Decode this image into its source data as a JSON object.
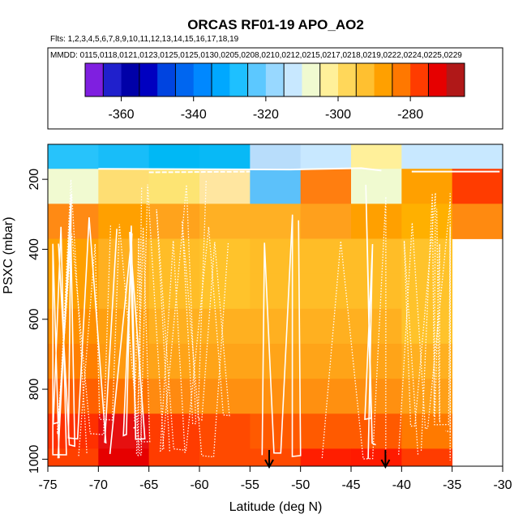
{
  "chart_data": {
    "type": "heatmap",
    "title": "ORCAS RF01-19 APO_AO2",
    "flights_label": "Flts: 1,2,3,4,5,6,7,8,9,10,11,12,13,14,15,16,17,18,19",
    "dates_label": "MMDD: 0115,0118,0121,0123,0125,0125,0130,0205,0208,0210,0212,0215,0217,0218,0219,0222,0224,0225,0229",
    "xlabel": "Latitude (deg N)",
    "ylabel": "PSXC (mbar)",
    "xlim": [
      -75,
      -30
    ],
    "ylim": [
      1020,
      100
    ],
    "xticks": [
      -75,
      -70,
      -65,
      -60,
      -55,
      -50,
      -45,
      -40,
      -35,
      -30
    ],
    "xtick_labels": [
      "-75",
      "-70",
      "-65",
      "-60",
      "-55",
      "-50",
      "-45",
      "-40",
      "-35",
      "-30"
    ],
    "yticks": [
      200,
      400,
      600,
      800,
      1000
    ],
    "ytick_labels": [
      "200",
      "400",
      "600",
      "800",
      "1000"
    ],
    "colorbar": {
      "min": -370,
      "max": -265,
      "ticks": [
        -360,
        -340,
        -320,
        -300,
        -280
      ],
      "tick_labels": [
        "-360",
        "-340",
        "-320",
        "-300",
        "-280"
      ],
      "bins": [
        {
          "lo": -370,
          "hi": -365,
          "color": "#7f1fe0"
        },
        {
          "lo": -365,
          "hi": -360,
          "color": "#2020cc"
        },
        {
          "lo": -360,
          "hi": -355,
          "color": "#0000a8"
        },
        {
          "lo": -355,
          "hi": -350,
          "color": "#0000c0"
        },
        {
          "lo": -350,
          "hi": -345,
          "color": "#0044e0"
        },
        {
          "lo": -345,
          "hi": -340,
          "color": "#0066f0"
        },
        {
          "lo": -340,
          "hi": -335,
          "color": "#0088ff"
        },
        {
          "lo": -335,
          "hi": -330,
          "color": "#00a8ff"
        },
        {
          "lo": -330,
          "hi": -325,
          "color": "#1ec0ff"
        },
        {
          "lo": -325,
          "hi": -320,
          "color": "#5cc8ff"
        },
        {
          "lo": -320,
          "hi": -315,
          "color": "#98d8ff"
        },
        {
          "lo": -315,
          "hi": -310,
          "color": "#c8e8ff"
        },
        {
          "lo": -310,
          "hi": -305,
          "color": "#f0fad0"
        },
        {
          "lo": -305,
          "hi": -300,
          "color": "#fff09a"
        },
        {
          "lo": -300,
          "hi": -295,
          "color": "#ffd75a"
        },
        {
          "lo": -295,
          "hi": -290,
          "color": "#ffc030"
        },
        {
          "lo": -290,
          "hi": -285,
          "color": "#ffa000"
        },
        {
          "lo": -285,
          "hi": -280,
          "color": "#ff7800"
        },
        {
          "lo": -280,
          "hi": -275,
          "color": "#ff3c00"
        },
        {
          "lo": -275,
          "hi": -270,
          "color": "#e60000"
        },
        {
          "lo": -270,
          "hi": -265,
          "color": "#b01818"
        }
      ]
    },
    "grid": {
      "lat_edges": [
        -75,
        -70,
        -65,
        -60,
        -55,
        -50,
        -45,
        -40,
        -35,
        -30
      ],
      "p_edges": [
        100,
        170,
        270,
        370,
        470,
        570,
        670,
        770,
        870,
        970,
        1020
      ],
      "colors": [
        [
          "#27c3fb",
          "#18bdf9",
          "#00b8f5",
          "#08b9f6",
          "#b8ddfb",
          "#c8e8ff",
          "#fff09a",
          "#c8e8ff",
          "#c8e8ff"
        ],
        [
          "#f1fad1",
          "#fede73",
          "#fde473",
          "#ffe6a0",
          "#5cc1fa",
          "#ff7e10",
          "#f0fad0",
          "#ffa000",
          "#ff3c00"
        ],
        [
          "#ff8a14",
          "#ffa000",
          "#ffa31c",
          "#ffb024",
          "#ffb024",
          "#ffa01c",
          "#ffa000",
          "#ffb000",
          "#ff8a10"
        ],
        [
          "#ffa000",
          "#ffb020",
          "#ffbd27",
          "#ffc32b",
          "#ffbd27",
          "#ffbd27",
          "#ffbd27",
          "#ffc32b",
          null
        ],
        [
          "#ffa000",
          "#ffb020",
          "#ffbd27",
          "#ffc32b",
          "#ffbd27",
          "#ffbd27",
          "#ffbd27",
          "#ffc32b",
          null
        ],
        [
          "#ff9000",
          "#ffa010",
          "#ffb020",
          "#ffb020",
          "#ffb020",
          "#ffb020",
          "#ffb020",
          "#ffc32b",
          null
        ],
        [
          "#ff8000",
          "#ff9a10",
          "#ffa418",
          "#ffa418",
          "#ffa418",
          "#ffa418",
          "#ffa418",
          "#ffb020",
          null
        ],
        [
          "#ff6000",
          "#ff7400",
          "#ff8a10",
          "#ff9010",
          "#ff9010",
          "#ff9010",
          "#ff9010",
          "#ffa018",
          null
        ],
        [
          "#ff3000",
          "#e61010",
          "#ff3c00",
          "#ff4a00",
          "#ff5a00",
          "#ff5a00",
          "#ff5a00",
          "#ff7a00",
          null
        ],
        [
          "#ff4000",
          "#e60000",
          "#ff3c00",
          "#ff4a00",
          "#ff4a00",
          "#ff1e00",
          "#ff1a00",
          "#ff3c00",
          null
        ]
      ]
    },
    "markers": [
      {
        "lat": -53.1,
        "label": "down arrow"
      },
      {
        "lat": -41.6,
        "label": "down arrow"
      }
    ],
    "flight_tracks": {
      "description": "white flight-path overlay (dotted and solid)",
      "color": "#ffffff"
    }
  }
}
